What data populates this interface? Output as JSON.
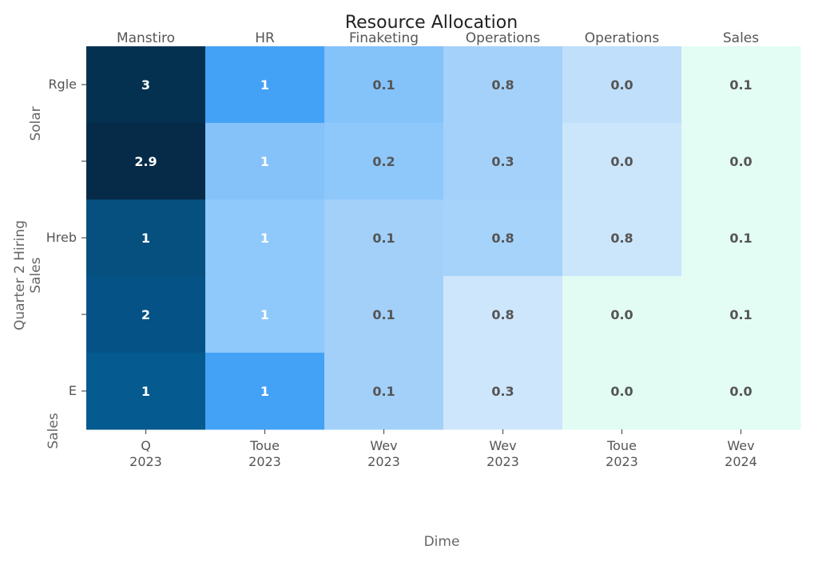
{
  "chart_data": {
    "type": "heatmap",
    "title": "Resource Allocation",
    "top_labels": [
      "Manstiro",
      "HR",
      "Finaketing",
      "Operations",
      "Operations",
      "Sales"
    ],
    "x_ticks": [
      {
        "line1": "Q",
        "line2": "2023"
      },
      {
        "line1": "Toue",
        "line2": "2023"
      },
      {
        "line1": "Wev",
        "line2": "2023"
      },
      {
        "line1": "Wev",
        "line2": "2023"
      },
      {
        "line1": "Toue",
        "line2": "2023"
      },
      {
        "line1": "Wev",
        "line2": "2024"
      }
    ],
    "y_ticks": [
      "Rgle",
      "",
      "Hreb",
      "",
      "Ε"
    ],
    "xlabel": "Dime",
    "ylabel_lines": [
      "Quarter 2 Hiring",
      "Sales"
    ],
    "ylabel_fragments": [
      "Solar",
      "Sales"
    ],
    "values": [
      [
        3,
        1,
        0.1,
        0.8,
        0.0,
        0.1
      ],
      [
        2.9,
        1,
        0.2,
        0.3,
        0.0,
        0.0
      ],
      [
        1,
        1,
        0.1,
        0.8,
        0.8,
        0.1
      ],
      [
        2,
        1,
        0.1,
        0.8,
        0.0,
        0.1
      ],
      [
        1,
        1,
        0.1,
        0.3,
        0.0,
        0.0
      ]
    ],
    "cell_labels": [
      [
        "3",
        "1",
        "0.1",
        "0.8",
        "0.0",
        "0.1"
      ],
      [
        "2.9",
        "1",
        "0.2",
        "0.3",
        "0.0",
        "0.0"
      ],
      [
        "1",
        "1",
        "0.1",
        "0.8",
        "0.8",
        "0.1"
      ],
      [
        "2",
        "1",
        "0.1",
        "0.8",
        "0.0",
        "0.1"
      ],
      [
        "1",
        "1",
        "0.1",
        "0.3",
        "0.0",
        "0.0"
      ]
    ],
    "cell_colors": [
      [
        "#053150",
        "#44a2f6",
        "#84c2fa",
        "#a4d1fa",
        "#bfdffb",
        "#e3fcf4"
      ],
      [
        "#052b48",
        "#86c2fa",
        "#8ec7f9",
        "#a4d1fa",
        "#cbe6fb",
        "#e3fcf4"
      ],
      [
        "#05507f",
        "#8fc8fa",
        "#a2d0f9",
        "#a6d3fa",
        "#cbe6fb",
        "#e3fcf4"
      ],
      [
        "#055386",
        "#8fc8fa",
        "#a2d0f9",
        "#cde6fb",
        "#e2fcf3",
        "#e3fcf4"
      ],
      [
        "#055a8f",
        "#44a2f6",
        "#a2d0f9",
        "#cde6fb",
        "#e2fcf3",
        "#e3fcf4"
      ]
    ],
    "text_colors": [
      "#ffffff",
      "#ffffff",
      "#555555",
      "#555555",
      "#555555",
      "#555555"
    ],
    "grid": false
  }
}
